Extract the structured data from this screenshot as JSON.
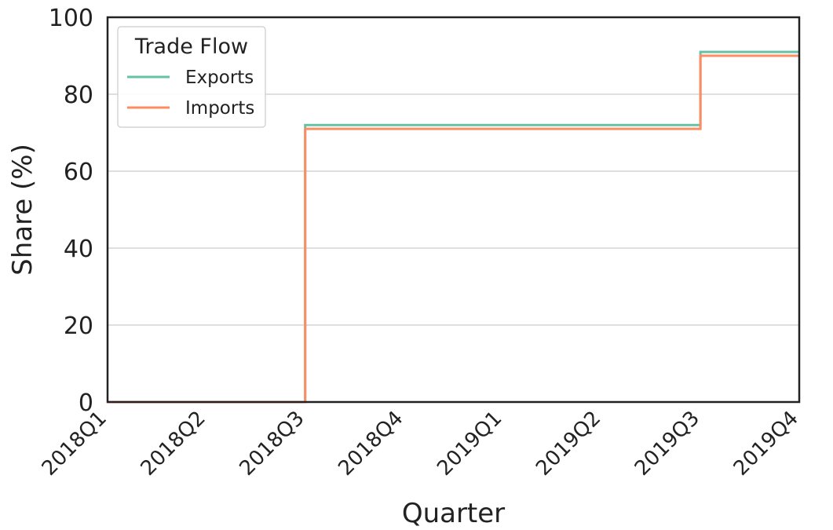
{
  "chart_data": {
    "type": "line",
    "step": "post",
    "title": "",
    "xlabel": "Quarter",
    "ylabel": "Share (%)",
    "categories": [
      "2018Q1",
      "2018Q2",
      "2018Q3",
      "2018Q4",
      "2019Q1",
      "2019Q2",
      "2019Q3",
      "2019Q4"
    ],
    "series": [
      {
        "name": "Exports",
        "values": [
          0,
          0,
          72,
          72,
          72,
          72,
          91,
          91
        ],
        "color": "#66c2a5"
      },
      {
        "name": "Imports",
        "values": [
          0,
          0,
          71,
          71,
          71,
          71,
          90,
          90
        ],
        "color": "#fc8d62"
      }
    ],
    "ylim": [
      0,
      100
    ],
    "yticks": [
      0,
      20,
      40,
      60,
      80,
      100
    ],
    "grid": "horizontal",
    "legend": {
      "title": "Trade Flow",
      "placement": "top-left"
    }
  }
}
